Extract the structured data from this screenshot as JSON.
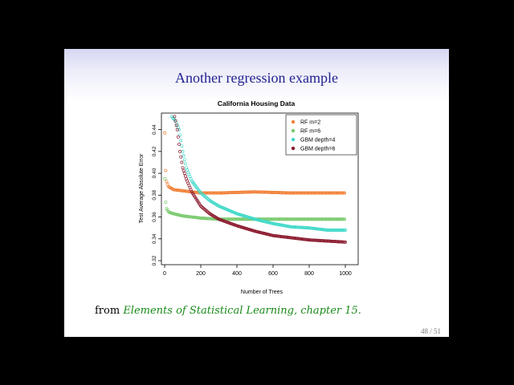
{
  "slide": {
    "title": "Another regression example",
    "caption_prefix": "from ",
    "caption_reference": "Elements of Statistical Learning, chapter 15.",
    "page_number": "48 / 51"
  },
  "chart_data": {
    "type": "scatter",
    "title": "California Housing Data",
    "xlabel": "Number of Trees",
    "ylabel": "Test Average Absolute Error",
    "xlim": [
      0,
      1000
    ],
    "ylim": [
      0.32,
      0.45
    ],
    "xticks": [
      0,
      200,
      400,
      600,
      800,
      1000
    ],
    "yticks": [
      0.32,
      0.34,
      0.36,
      0.38,
      0.4,
      0.42,
      0.44
    ],
    "grid": false,
    "legend_position": "top-right",
    "series": [
      {
        "name": "RF m=2",
        "color": "#f07f35",
        "points": [
          [
            1,
            0.437
          ],
          [
            5,
            0.405
          ],
          [
            10,
            0.393
          ],
          [
            20,
            0.388
          ],
          [
            30,
            0.387
          ],
          [
            50,
            0.385
          ],
          [
            100,
            0.384
          ],
          [
            150,
            0.383
          ],
          [
            200,
            0.382
          ],
          [
            300,
            0.382
          ],
          [
            500,
            0.383
          ],
          [
            700,
            0.382
          ],
          [
            1000,
            0.382
          ]
        ]
      },
      {
        "name": "RF m=6",
        "color": "#77c96b",
        "points": [
          [
            1,
            0.395
          ],
          [
            5,
            0.375
          ],
          [
            10,
            0.368
          ],
          [
            20,
            0.365
          ],
          [
            30,
            0.364
          ],
          [
            50,
            0.363
          ],
          [
            100,
            0.361
          ],
          [
            150,
            0.36
          ],
          [
            200,
            0.359
          ],
          [
            300,
            0.358
          ],
          [
            500,
            0.358
          ],
          [
            700,
            0.358
          ],
          [
            1000,
            0.358
          ]
        ]
      },
      {
        "name": "GBM depth=4",
        "color": "#40d9c9",
        "points": [
          [
            40,
            0.452
          ],
          [
            60,
            0.448
          ],
          [
            80,
            0.44
          ],
          [
            100,
            0.42
          ],
          [
            120,
            0.405
          ],
          [
            150,
            0.393
          ],
          [
            200,
            0.382
          ],
          [
            250,
            0.375
          ],
          [
            300,
            0.37
          ],
          [
            400,
            0.363
          ],
          [
            500,
            0.358
          ],
          [
            600,
            0.354
          ],
          [
            700,
            0.351
          ],
          [
            800,
            0.35
          ],
          [
            900,
            0.348
          ],
          [
            1000,
            0.348
          ]
        ]
      },
      {
        "name": "GBM depth=6",
        "color": "#8b1a2e",
        "points": [
          [
            55,
            0.452
          ],
          [
            70,
            0.44
          ],
          [
            85,
            0.42
          ],
          [
            100,
            0.405
          ],
          [
            120,
            0.395
          ],
          [
            150,
            0.383
          ],
          [
            200,
            0.37
          ],
          [
            250,
            0.363
          ],
          [
            300,
            0.358
          ],
          [
            400,
            0.352
          ],
          [
            500,
            0.347
          ],
          [
            600,
            0.343
          ],
          [
            700,
            0.341
          ],
          [
            800,
            0.339
          ],
          [
            900,
            0.338
          ],
          [
            1000,
            0.337
          ]
        ]
      }
    ]
  }
}
